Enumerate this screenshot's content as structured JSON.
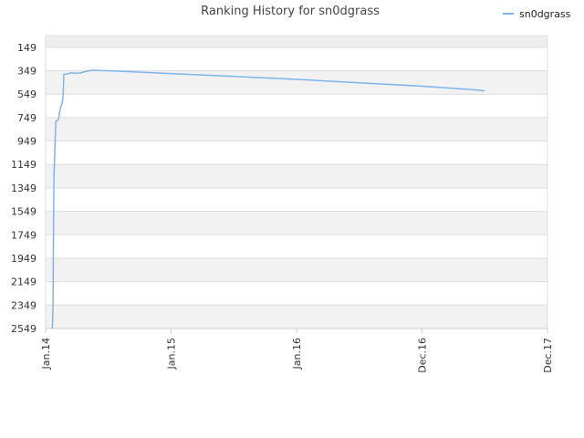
{
  "chart_data": {
    "type": "line",
    "title": "Ranking History for sn0dgrass",
    "xlabel": "",
    "ylabel": "",
    "y_reversed": true,
    "ylim": [
      2549,
      49
    ],
    "y_ticks": [
      149,
      349,
      549,
      749,
      949,
      1149,
      1349,
      1549,
      1749,
      1949,
      2149,
      2349,
      2549
    ],
    "x_ticks": [
      "Jan.14",
      "Jan.15",
      "Jan.16",
      "Dec.16",
      "Dec.17"
    ],
    "xlim": [
      "2014-01-01",
      "2017-12-01"
    ],
    "grid": true,
    "alternating_bands": true,
    "legend": {
      "placement": "top-right"
    },
    "colors": {
      "series": "#7cb5ec",
      "band_dark": "#efefef",
      "band_light": "#ffffff",
      "grid": "#dddddd",
      "axis": "#cccccc"
    },
    "series": [
      {
        "name": "sn0dgrass",
        "points": [
          [
            "2014-01-20",
            2549
          ],
          [
            "2014-01-21",
            2470
          ],
          [
            "2014-01-22",
            2350
          ],
          [
            "2014-01-23",
            1850
          ],
          [
            "2014-01-24",
            1550
          ],
          [
            "2014-01-25",
            1250
          ],
          [
            "2014-01-26",
            1150
          ],
          [
            "2014-01-28",
            950
          ],
          [
            "2014-01-29",
            870
          ],
          [
            "2014-01-30",
            780
          ],
          [
            "2014-02-05",
            770
          ],
          [
            "2014-02-07",
            760
          ],
          [
            "2014-02-10",
            700
          ],
          [
            "2014-02-13",
            660
          ],
          [
            "2014-02-17",
            630
          ],
          [
            "2014-02-20",
            560
          ],
          [
            "2014-02-22",
            380
          ],
          [
            "2014-03-05",
            375
          ],
          [
            "2014-03-15",
            365
          ],
          [
            "2014-03-25",
            370
          ],
          [
            "2014-04-10",
            368
          ],
          [
            "2014-04-25",
            355
          ],
          [
            "2014-05-15",
            345
          ],
          [
            "2014-07-01",
            350
          ],
          [
            "2014-12-01",
            370
          ],
          [
            "2015-06-01",
            395
          ],
          [
            "2016-01-01",
            425
          ],
          [
            "2016-06-01",
            450
          ],
          [
            "2016-12-01",
            480
          ],
          [
            "2017-05-01",
            510
          ],
          [
            "2017-06-05",
            520
          ]
        ]
      }
    ]
  }
}
